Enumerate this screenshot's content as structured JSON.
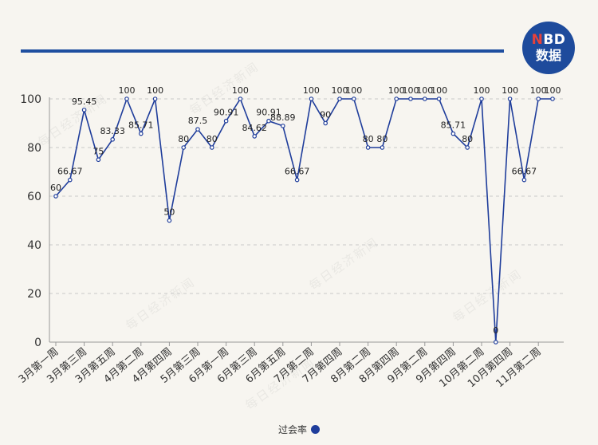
{
  "logo": {
    "brand_mark": "NBD",
    "subtitle": "数据"
  },
  "watermark_text": "每日经济新闻",
  "colors": {
    "line": "#1f3d9b",
    "header_bar": "#1f4fa0",
    "logo_bg": "#1e4b9c",
    "logo_accent": "#e8423a"
  },
  "legend": {
    "series_label": "过会率"
  },
  "chart_data": {
    "type": "line",
    "series": [
      {
        "name": "过会率",
        "values": [
          60,
          66.67,
          95.45,
          75,
          83.33,
          100,
          85.71,
          100,
          50,
          80,
          87.5,
          80,
          90.91,
          100,
          84.62,
          90.91,
          88.89,
          66.67,
          100,
          90,
          100,
          100,
          80,
          80,
          100,
          100,
          100,
          100,
          85.71,
          80,
          100,
          0,
          100,
          66.67,
          100,
          100
        ]
      }
    ],
    "x_tick_labels": [
      "3月第一周",
      "3月第三周",
      "3月第五周",
      "4月第二周",
      "4月第四周",
      "5月第三周",
      "6月第一周",
      "6月第三周",
      "6月第五周",
      "7月第二周",
      "7月第四周",
      "8月第二周",
      "8月第四周",
      "9月第二周",
      "9月第四周",
      "10月第二周",
      "10月第四周",
      "11月第二周"
    ],
    "y_ticks": [
      0,
      20,
      40,
      60,
      80,
      100
    ],
    "ylim": [
      0,
      100
    ],
    "grid": "horizontal dashed",
    "legend_position": "bottom"
  }
}
